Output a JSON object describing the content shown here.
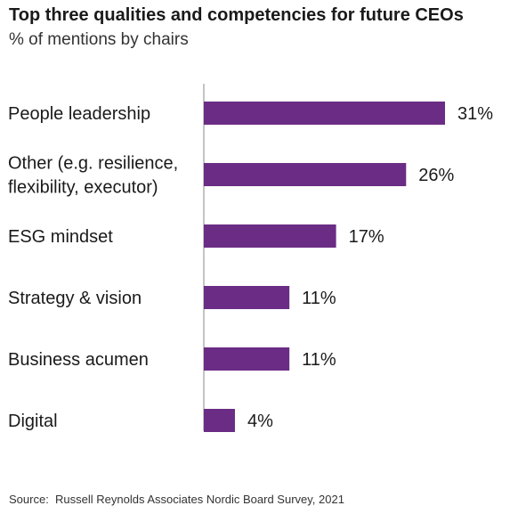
{
  "chart_data": {
    "type": "bar",
    "orientation": "horizontal",
    "title": "Top three qualities and competencies for future CEOs",
    "subtitle": "% of mentions by chairs",
    "categories": [
      [
        "People leadership"
      ],
      [
        "Other (e.g. resilience,",
        "flexibility, executor)"
      ],
      [
        "ESG mindset"
      ],
      [
        "Strategy & vision"
      ],
      [
        "Business acumen"
      ],
      [
        "Digital"
      ]
    ],
    "values": [
      31,
      26,
      17,
      11,
      11,
      4
    ],
    "value_labels": [
      "31%",
      "26%",
      "17%",
      "11%",
      "11%",
      "4%"
    ],
    "unit": "%",
    "xlim": [
      0,
      31
    ],
    "grid": false,
    "bar_color": "#6a2c84",
    "axis_color": "#b0b0b0"
  },
  "source": "Source:  Russell Reynolds Associates Nordic Board Survey, 2021"
}
